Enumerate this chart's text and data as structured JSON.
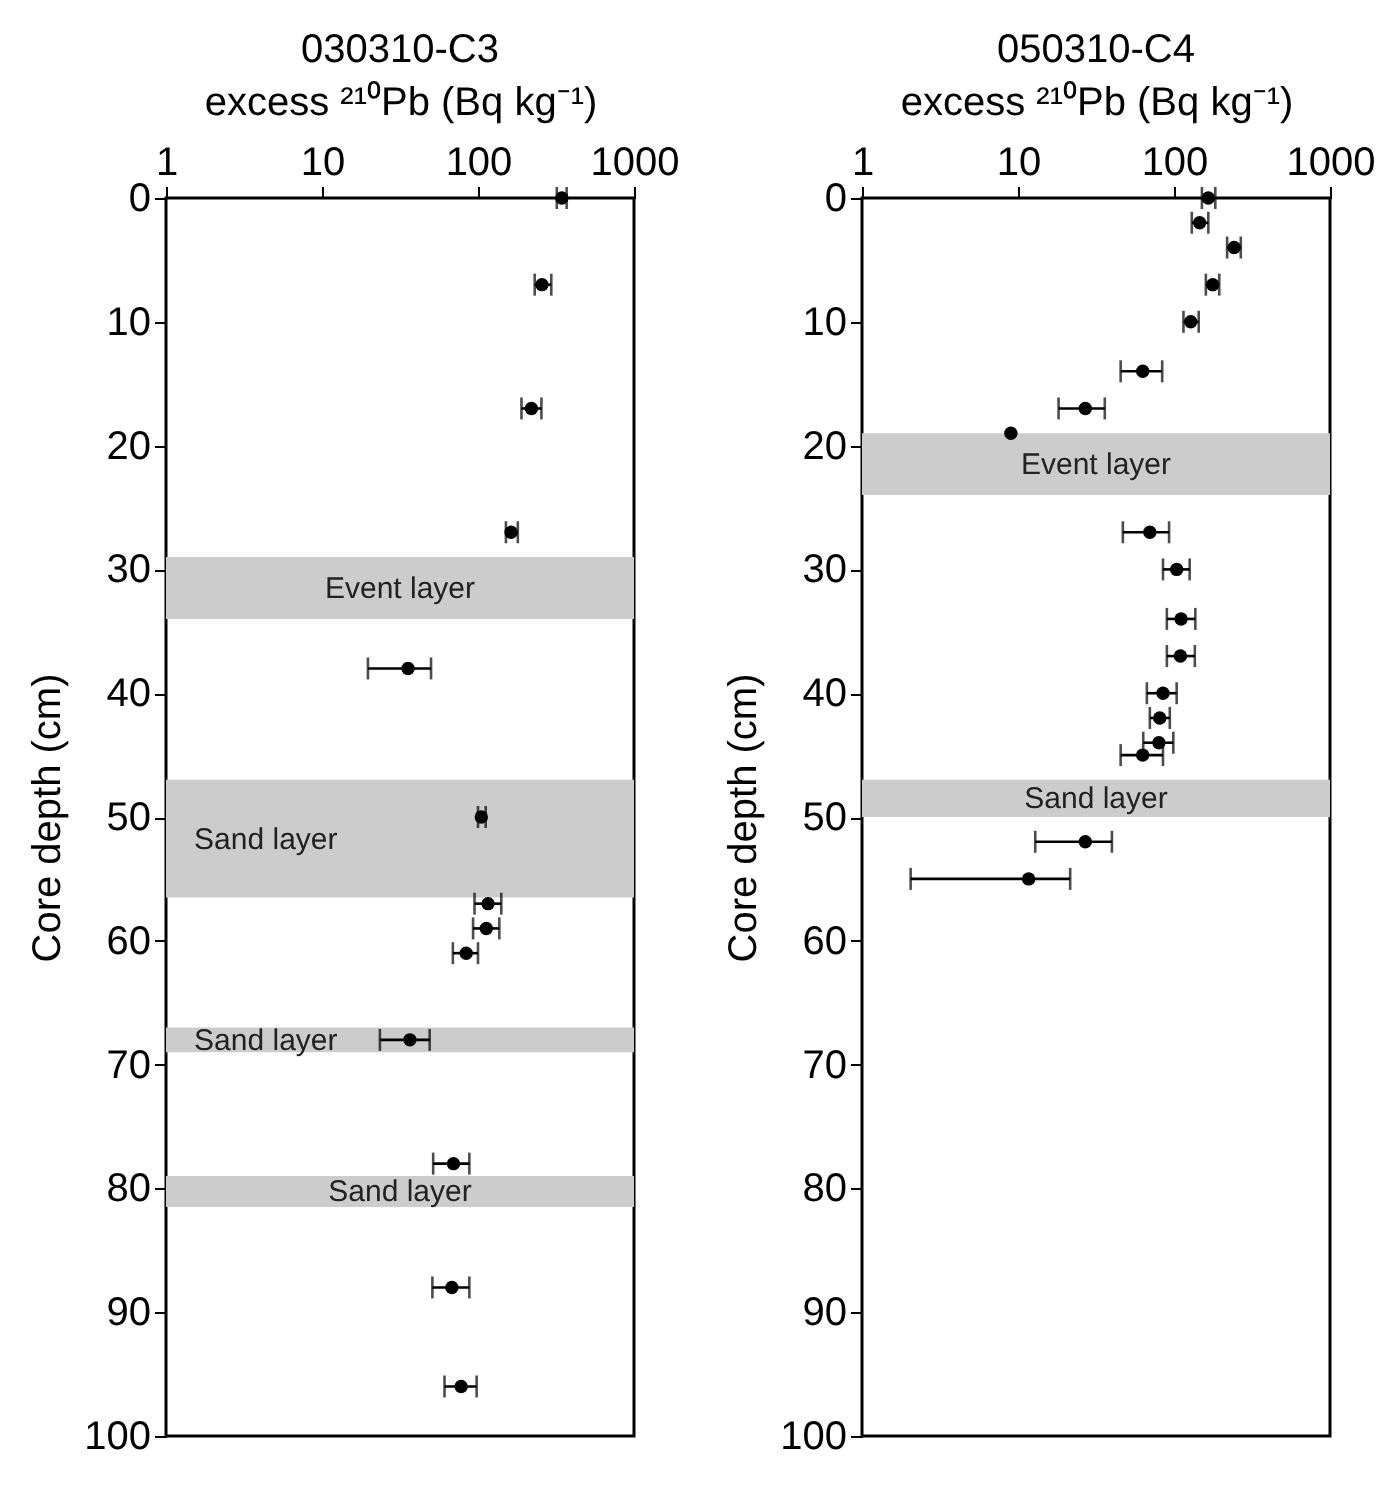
{
  "chart_data": [
    {
      "type": "scatter",
      "title": "030310-C3",
      "xlabel": "excess ²¹⁰Pb (Bq kg⁻¹)",
      "ylabel": "Core depth (cm)",
      "log": "x",
      "grid": false,
      "marker": "circle",
      "xlim": [
        1,
        1000
      ],
      "xticks": [
        1,
        10,
        100,
        1000
      ],
      "ylim": [
        100,
        0
      ],
      "yticks": [
        0,
        10,
        20,
        30,
        40,
        50,
        60,
        70,
        80,
        90,
        100
      ],
      "series": [
        {
          "color": "#000000",
          "x": [
            345,
            257,
            220,
            163,
            35.6,
            105,
            116,
            113,
            84,
            36.6,
            69.6,
            68,
            78
          ],
          "values": [
            0,
            7,
            17,
            27,
            38,
            50,
            57,
            59,
            61,
            68,
            78,
            88,
            96
          ],
          "xerrors": [
            [
              320,
              370
            ],
            [
              231,
              295
            ],
            [
              190,
              255
            ],
            [
              151,
              180
            ],
            [
              19.7,
              50
            ],
            [
              100,
              112
            ],
            [
              95,
              141
            ],
            [
              93,
              137
            ],
            [
              69,
              100
            ],
            [
              23.5,
              49
            ],
            [
              51.6,
              88
            ],
            [
              51,
              88
            ],
            [
              61,
              98
            ]
          ]
        }
      ],
      "bands": [
        {
          "axis": "y",
          "from": 29,
          "to": 34,
          "label": "Event layer",
          "color": "#cccccc"
        },
        {
          "axis": "y",
          "from": 47,
          "to": 56.5,
          "label": "Sand layer",
          "color": "#cccccc"
        },
        {
          "axis": "y",
          "from": 67,
          "to": 69,
          "label": "Sand layer",
          "color": "#cccccc"
        },
        {
          "axis": "y",
          "from": 79,
          "to": 81.5,
          "label": "Sand layer",
          "color": "#cccccc"
        }
      ]
    },
    {
      "type": "scatter",
      "title": "050310-C4",
      "xlabel": "excess ²¹⁰Pb (Bq kg⁻¹)",
      "ylabel": "Core depth (cm)",
      "log": "x",
      "grid": false,
      "marker": "circle",
      "xlim": [
        1,
        1000
      ],
      "xticks": [
        1,
        10,
        100,
        1000
      ],
      "ylim": [
        100,
        0
      ],
      "yticks": [
        0,
        10,
        20,
        30,
        40,
        50,
        60,
        70,
        80,
        90,
        100
      ],
      "series": [
        {
          "color": "#000000",
          "x": [
            166,
            146,
            243,
            177,
            128,
            63,
            27,
            9,
            70,
            104,
            111,
            110,
            85,
            81,
            80,
            63,
            27,
            11.7
          ],
          "values": [
            0,
            2,
            4,
            7,
            10,
            14,
            17,
            19,
            27,
            30,
            34,
            37,
            40,
            42,
            44,
            45,
            52,
            55
          ],
          "xerrors": [
            [
              151,
              184
            ],
            [
              130,
              166
            ],
            [
              219,
              268
            ],
            [
              160,
              195
            ],
            [
              115,
              144
            ],
            [
              45.5,
              84
            ],
            [
              18.2,
              36
            ],
            null,
            [
              47,
              93
            ],
            [
              85,
              126
            ],
            [
              90,
              137
            ],
            [
              90,
              136
            ],
            [
              67,
              104
            ],
            [
              70,
              94
            ],
            [
              63.5,
              99
            ],
            [
              45.5,
              85
            ],
            [
              12.9,
              40
            ],
            [
              2.05,
              21.6
            ]
          ]
        }
      ],
      "bands": [
        {
          "axis": "y",
          "from": 19,
          "to": 24,
          "label": "Event layer",
          "color": "#cccccc"
        },
        {
          "axis": "y",
          "from": 47,
          "to": 50,
          "label": "Sand layer",
          "color": "#cccccc"
        }
      ]
    }
  ]
}
